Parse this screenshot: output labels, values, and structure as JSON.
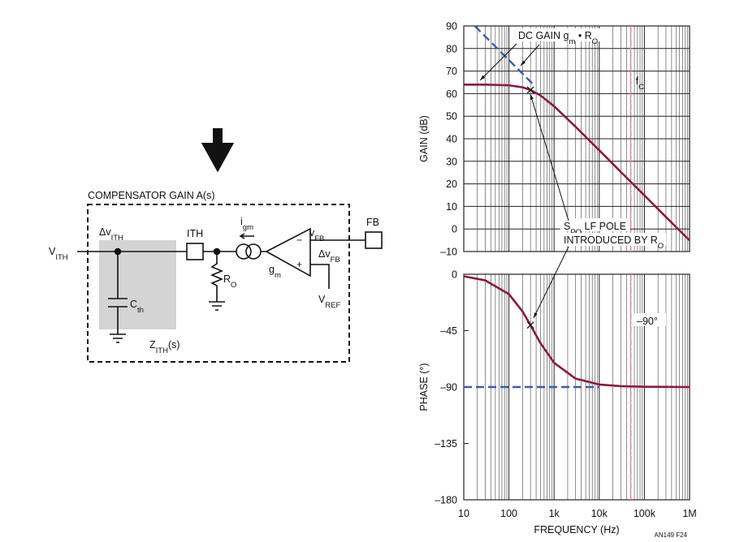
{
  "diagram": {
    "title": "COMPENSATOR GAIN A(s)",
    "labels": [
      [
        "V",
        "ITH"
      ],
      [
        "Δv",
        "ITH"
      ],
      [
        "C",
        "th"
      ],
      [
        "Z",
        "ITH",
        "(s)"
      ],
      [
        "ITH"
      ],
      [
        "i",
        "gm"
      ],
      [
        "R",
        "O"
      ],
      [
        "g",
        "m"
      ],
      [
        "−"
      ],
      [
        "+"
      ],
      [
        "v",
        "FB"
      ],
      [
        "Δv",
        "FB"
      ],
      [
        "V",
        "REF"
      ],
      [
        "FB"
      ]
    ]
  },
  "chart_data": [
    {
      "type": "line",
      "ylabel": "GAIN (dB)",
      "xscale": "log",
      "xlim": [
        10,
        1000000
      ],
      "xticks": [
        10,
        100,
        1000,
        10000,
        100000,
        1000000
      ],
      "show_xtick_labels": false,
      "ylim": [
        -10,
        90
      ],
      "yticks": [
        {
          "value": -10,
          "label": "–10"
        },
        0,
        10,
        20,
        30,
        40,
        50,
        60,
        70,
        80,
        90
      ],
      "xgrid": true,
      "ygrid": true,
      "series": [
        {
          "color": "#8b1a3c",
          "dashed": false,
          "x": [
            10,
            30,
            100,
            200,
            300,
            500,
            1000,
            3000,
            10000,
            30000,
            100000,
            300000,
            1000000
          ],
          "values": [
            64,
            64,
            63.7,
            62.8,
            61.6,
            59.2,
            54.4,
            45.3,
            34.9,
            25.3,
            14.9,
            5.3,
            -5.1
          ]
        },
        {
          "color": "#3b5ca8",
          "dashed": true,
          "x": [
            17.5,
            350
          ],
          "values": [
            90,
            64
          ]
        }
      ],
      "markers": [
        {
          "x": 300,
          "y": 61.6
        }
      ],
      "vlines": [
        {
          "x": 50000,
          "color": "#e8778a",
          "label": [
            "f",
            "C"
          ]
        }
      ],
      "annotations": [
        [
          "DC GAIN g",
          "m",
          " • R",
          "O"
        ],
        [
          "S",
          "PO",
          " LF POLE"
        ],
        [
          "INTRODUCED BY R",
          "O"
        ]
      ]
    },
    {
      "type": "line",
      "ylabel": "PHASE (°)",
      "xlabel": "FREQUENCY (Hz)",
      "xscale": "log",
      "xlim": [
        10,
        1000000
      ],
      "xticks": [
        10,
        100,
        {
          "value": 1000,
          "label": "1k"
        },
        {
          "value": 10000,
          "label": "10k"
        },
        {
          "value": 100000,
          "label": "100k"
        },
        {
          "value": 1000000,
          "label": "1M"
        }
      ],
      "show_xtick_labels": true,
      "ylim": [
        -180,
        0
      ],
      "yticks": [
        {
          "value": -180,
          "label": "–180"
        },
        {
          "value": -135,
          "label": "–135"
        },
        {
          "value": -90,
          "label": "–90"
        },
        {
          "value": -45,
          "label": "–45"
        },
        0
      ],
      "xgrid": true,
      "ygrid": false,
      "series": [
        {
          "color": "#8b1a3c",
          "dashed": false,
          "x": [
            10,
            30,
            100,
            200,
            300,
            500,
            1000,
            3000,
            10000,
            30000,
            100000,
            300000,
            1000000
          ],
          "values": [
            -1.6,
            -4.9,
            -15.9,
            -29.7,
            -40.6,
            -55.0,
            -70.7,
            -83.3,
            -88.0,
            -89.3,
            -89.8,
            -89.9,
            -90
          ]
        },
        {
          "color": "#3b5ca8",
          "dashed": true,
          "x": [
            10,
            10000
          ],
          "values": [
            -90,
            -90
          ]
        }
      ],
      "markers": [
        {
          "x": 300,
          "y": -40.6
        }
      ],
      "vlines": [
        {
          "x": 50000,
          "color": "#e8778a"
        }
      ],
      "annotations": [
        [
          "–90°"
        ]
      ]
    }
  ],
  "footer": "AN149 F24"
}
